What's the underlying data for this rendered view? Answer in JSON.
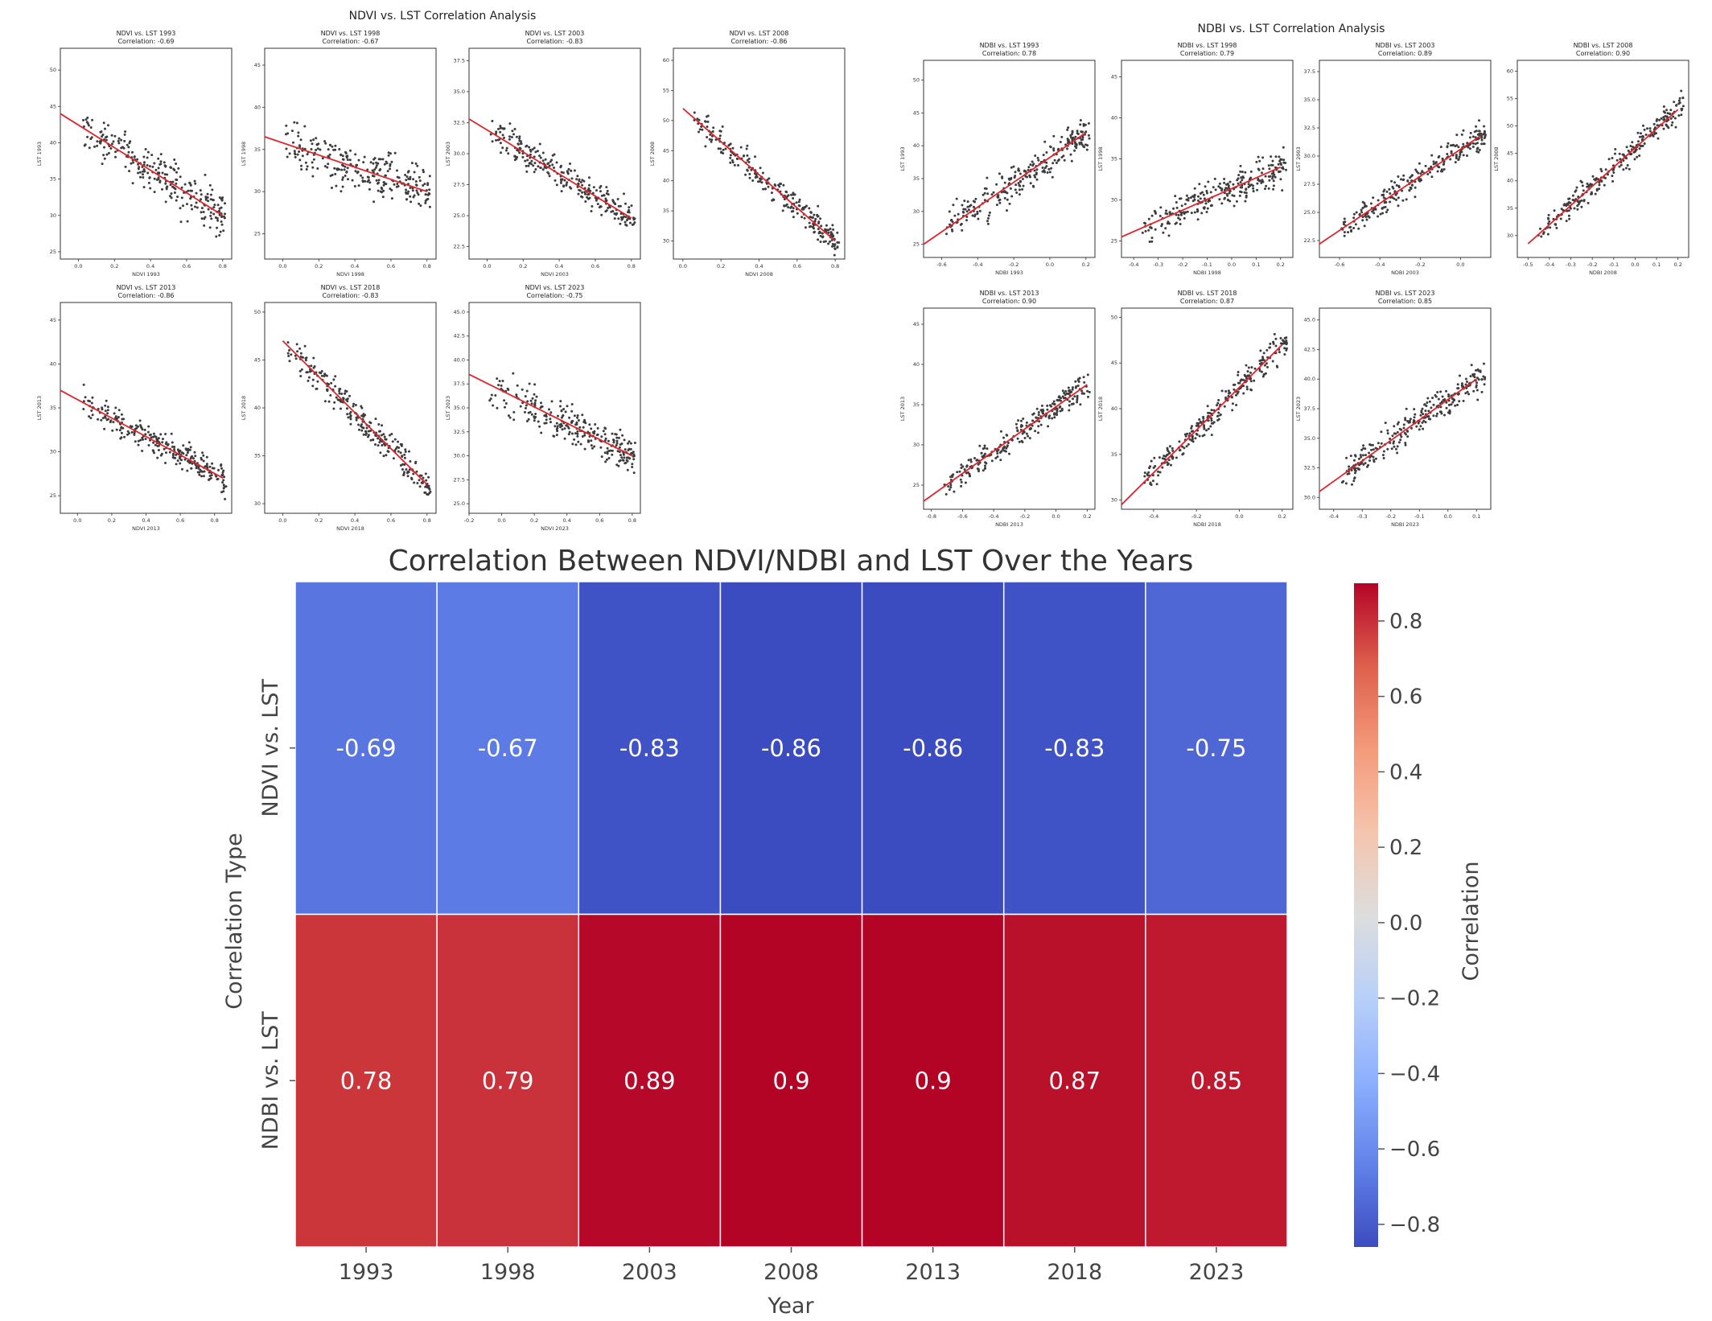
{
  "chart_data": [
    {
      "type": "scatter",
      "group_title": "NDVI vs. LST Correlation Analysis",
      "panels": [
        {
          "title": "NDVI vs. LST 1993",
          "subtitle": "Correlation: -0.69",
          "xlabel": "NDVI 1993",
          "ylabel": "LST 1993",
          "xticks": [
            "0.0",
            "0.2",
            "0.4",
            "0.6",
            "0.8"
          ],
          "yticks": [
            "25",
            "30",
            "35",
            "40",
            "45",
            "50"
          ],
          "xlim": [
            -0.1,
            0.85
          ],
          "ylim": [
            24,
            53
          ],
          "correlation": -0.69,
          "trend": {
            "x": [
              -0.1,
              0.8
            ],
            "y": [
              44,
              30
            ]
          }
        },
        {
          "title": "NDVI vs. LST 1998",
          "subtitle": "Correlation: -0.67",
          "xlabel": "NDVI 1998",
          "ylabel": "LST 1998",
          "xticks": [
            "0.0",
            "0.2",
            "0.4",
            "0.6",
            "0.8"
          ],
          "yticks": [
            "25",
            "30",
            "35",
            "40",
            "45"
          ],
          "xlim": [
            -0.1,
            0.85
          ],
          "ylim": [
            22,
            47
          ],
          "correlation": -0.67,
          "trend": {
            "x": [
              -0.1,
              0.8
            ],
            "y": [
              36.5,
              30
            ]
          }
        },
        {
          "title": "NDVI vs. LST 2003",
          "subtitle": "Correlation: -0.83",
          "xlabel": "NDVI 2003",
          "ylabel": "LST 2003",
          "xticks": [
            "0.0",
            "0.2",
            "0.4",
            "0.6",
            "0.8"
          ],
          "yticks": [
            "22.5",
            "25.0",
            "27.5",
            "30.0",
            "32.5",
            "35.0",
            "37.5"
          ],
          "xlim": [
            -0.1,
            0.85
          ],
          "ylim": [
            21.5,
            38.5
          ],
          "correlation": -0.83,
          "trend": {
            "x": [
              -0.1,
              0.8
            ],
            "y": [
              32.8,
              24.8
            ]
          }
        },
        {
          "title": "NDVI vs. LST 2008",
          "subtitle": "Correlation: -0.86",
          "xlabel": "NDVI 2008",
          "ylabel": "LST 2008",
          "xticks": [
            "0.0",
            "0.2",
            "0.4",
            "0.6",
            "0.8"
          ],
          "yticks": [
            "30",
            "35",
            "40",
            "45",
            "50",
            "55",
            "60"
          ],
          "xlim": [
            -0.05,
            0.85
          ],
          "ylim": [
            27,
            62
          ],
          "correlation": -0.86,
          "trend": {
            "x": [
              0.0,
              0.8
            ],
            "y": [
              52,
              30
            ]
          }
        },
        {
          "title": "NDVI vs. LST 2013",
          "subtitle": "Correlation: -0.86",
          "xlabel": "NDVI 2013",
          "ylabel": "LST 2013",
          "xticks": [
            "0.0",
            "0.2",
            "0.4",
            "0.6",
            "0.8"
          ],
          "yticks": [
            "25",
            "30",
            "35",
            "40",
            "45"
          ],
          "xlim": [
            -0.1,
            0.9
          ],
          "ylim": [
            23,
            47
          ],
          "correlation": -0.86,
          "trend": {
            "x": [
              -0.1,
              0.85
            ],
            "y": [
              37,
              27
            ]
          }
        },
        {
          "title": "NDVI vs. LST 2018",
          "subtitle": "Correlation: -0.83",
          "xlabel": "NDVI 2018",
          "ylabel": "LST 2018",
          "xticks": [
            "0.0",
            "0.2",
            "0.4",
            "0.6",
            "0.8"
          ],
          "yticks": [
            "30",
            "35",
            "40",
            "45",
            "50"
          ],
          "xlim": [
            -0.1,
            0.85
          ],
          "ylim": [
            29,
            51
          ],
          "correlation": -0.83,
          "trend": {
            "x": [
              0.0,
              0.8
            ],
            "y": [
              47,
              32
            ]
          }
        },
        {
          "title": "NDVI vs. LST 2023",
          "subtitle": "Correlation: -0.75",
          "xlabel": "NDVI 2023",
          "ylabel": "LST 2023",
          "xticks": [
            "-0.2",
            "0.0",
            "0.2",
            "0.4",
            "0.6",
            "0.8"
          ],
          "yticks": [
            "25.0",
            "27.5",
            "30.0",
            "32.5",
            "35.0",
            "37.5",
            "40.0",
            "42.5",
            "45.0"
          ],
          "xlim": [
            -0.2,
            0.85
          ],
          "ylim": [
            24,
            46
          ],
          "correlation": -0.75,
          "trend": {
            "x": [
              -0.2,
              0.8
            ],
            "y": [
              38.5,
              30
            ]
          }
        }
      ]
    },
    {
      "type": "scatter",
      "group_title": "NDBI vs. LST Correlation Analysis",
      "panels": [
        {
          "title": "NDBI vs. LST 1993",
          "subtitle": "Correlation: 0.78",
          "xlabel": "NDBI 1993",
          "ylabel": "LST 1993",
          "xticks": [
            "-0.6",
            "-0.4",
            "-0.2",
            "0.0",
            "0.2"
          ],
          "yticks": [
            "25",
            "30",
            "35",
            "40",
            "45",
            "50"
          ],
          "xlim": [
            -0.7,
            0.25
          ],
          "ylim": [
            23,
            53
          ],
          "correlation": 0.78,
          "trend": {
            "x": [
              -0.7,
              0.2
            ],
            "y": [
              25,
              42
            ]
          }
        },
        {
          "title": "NDBI vs. LST 1998",
          "subtitle": "Correlation: 0.79",
          "xlabel": "NDBI 1998",
          "ylabel": "LST 1998",
          "xticks": [
            "-0.4",
            "-0.3",
            "-0.2",
            "-0.1",
            "0.0",
            "0.1",
            "0.2"
          ],
          "yticks": [
            "25",
            "30",
            "35",
            "40",
            "45"
          ],
          "xlim": [
            -0.45,
            0.25
          ],
          "ylim": [
            23,
            47
          ],
          "correlation": 0.79,
          "trend": {
            "x": [
              -0.45,
              0.2
            ],
            "y": [
              25.5,
              34
            ]
          }
        },
        {
          "title": "NDBI vs. LST 2003",
          "subtitle": "Correlation: 0.89",
          "xlabel": "NDBI 2003",
          "ylabel": "LST 2003",
          "xticks": [
            "-0.6",
            "-0.4",
            "-0.2",
            "0.0"
          ],
          "yticks": [
            "22.5",
            "25.0",
            "27.5",
            "30.0",
            "32.5",
            "35.0",
            "37.5"
          ],
          "xlim": [
            -0.7,
            0.15
          ],
          "ylim": [
            21,
            38.5
          ],
          "correlation": 0.89,
          "trend": {
            "x": [
              -0.7,
              0.1
            ],
            "y": [
              22.2,
              31.8
            ]
          }
        },
        {
          "title": "NDBI vs. LST 2008",
          "subtitle": "Correlation: 0.90",
          "xlabel": "NDBI 2008",
          "ylabel": "LST 2008",
          "xticks": [
            "-0.5",
            "-0.4",
            "-0.3",
            "-0.2",
            "-0.1",
            "0.0",
            "0.1",
            "0.2"
          ],
          "yticks": [
            "30",
            "35",
            "40",
            "45",
            "50",
            "55",
            "60"
          ],
          "xlim": [
            -0.55,
            0.25
          ],
          "ylim": [
            26,
            62
          ],
          "correlation": 0.9,
          "trend": {
            "x": [
              -0.5,
              0.2
            ],
            "y": [
              28.5,
              53
            ]
          }
        },
        {
          "title": "NDBI vs. LST 2013",
          "subtitle": "Correlation: 0.90",
          "xlabel": "NDBI 2013",
          "ylabel": "LST 2013",
          "xticks": [
            "-0.8",
            "-0.6",
            "-0.4",
            "-0.2",
            "0.0",
            "0.2"
          ],
          "yticks": [
            "25",
            "30",
            "35",
            "40",
            "45"
          ],
          "xlim": [
            -0.85,
            0.25
          ],
          "ylim": [
            22,
            47
          ],
          "correlation": 0.9,
          "trend": {
            "x": [
              -0.85,
              0.2
            ],
            "y": [
              23,
              37.5
            ]
          }
        },
        {
          "title": "NDBI vs. LST 2018",
          "subtitle": "Correlation: 0.87",
          "xlabel": "NDBI 2018",
          "ylabel": "LST 2018",
          "xticks": [
            "-0.4",
            "-0.2",
            "0.0",
            "0.2"
          ],
          "yticks": [
            "30",
            "35",
            "40",
            "45",
            "50"
          ],
          "xlim": [
            -0.55,
            0.25
          ],
          "ylim": [
            29,
            51
          ],
          "correlation": 0.87,
          "trend": {
            "x": [
              -0.55,
              0.2
            ],
            "y": [
              29.5,
              47
            ]
          }
        },
        {
          "title": "NDBI vs. LST 2023",
          "subtitle": "Correlation: 0.85",
          "xlabel": "NDBI 2023",
          "ylabel": "LST 2023",
          "xticks": [
            "-0.4",
            "-0.3",
            "-0.2",
            "-0.1",
            "0.0",
            "0.1"
          ],
          "yticks": [
            "30.0",
            "32.5",
            "35.0",
            "37.5",
            "40.0",
            "42.5",
            "45.0"
          ],
          "xlim": [
            -0.45,
            0.15
          ],
          "ylim": [
            29,
            46
          ],
          "correlation": 0.85,
          "trend": {
            "x": [
              -0.45,
              0.1
            ],
            "y": [
              30.5,
              40
            ]
          }
        }
      ]
    },
    {
      "type": "heatmap",
      "title": "Correlation Between NDVI/NDBI and LST Over the Years",
      "xlabel": "Year",
      "ylabel": "Correlation Type",
      "categories": [
        "1993",
        "1998",
        "2003",
        "2008",
        "2013",
        "2018",
        "2023"
      ],
      "rows": [
        "NDVI vs. LST",
        "NDBI vs. LST"
      ],
      "values": [
        [
          -0.69,
          -0.67,
          -0.83,
          -0.86,
          -0.86,
          -0.83,
          -0.75
        ],
        [
          0.78,
          0.79,
          0.89,
          0.9,
          0.9,
          0.87,
          0.85
        ]
      ],
      "cell_labels": [
        [
          "-0.69",
          "-0.67",
          "-0.83",
          "-0.86",
          "-0.86",
          "-0.83",
          "-0.75"
        ],
        [
          "0.78",
          "0.79",
          "0.89",
          "0.9",
          "0.9",
          "0.87",
          "0.85"
        ]
      ],
      "colormap": "coolwarm",
      "vmin": -0.86,
      "vmax": 0.9,
      "colorbar": {
        "label": "Correlation",
        "ticks": [
          0.8,
          0.6,
          0.4,
          0.2,
          0.0,
          -0.2,
          -0.4,
          -0.6,
          -0.8
        ],
        "tick_labels": [
          "0.8",
          "0.6",
          "0.4",
          "0.2",
          "0.0",
          "−0.2",
          "−0.4",
          "−0.6",
          "−0.8"
        ]
      },
      "colors": {
        "cell_border": "#ffffff",
        "cell_text": "#ffffff",
        "scatter_point": "#3c3c3c",
        "trend_line": "#e0242b"
      }
    }
  ]
}
